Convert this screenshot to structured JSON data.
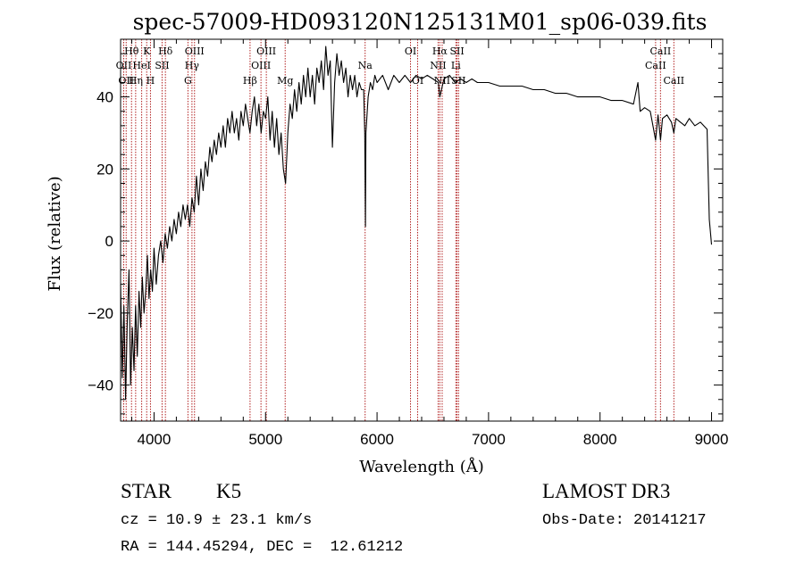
{
  "chart_data": {
    "type": "line",
    "title": "spec-57009-HD093120N125131M01_sp06-039.fits",
    "xlabel": "Wavelength (Å)",
    "ylabel": "Flux (relative)",
    "xlim": [
      3700,
      9100
    ],
    "ylim": [
      -50,
      56
    ],
    "xticks": [
      4000,
      5000,
      6000,
      7000,
      8000,
      9000
    ],
    "yticks": [
      -40,
      -20,
      0,
      20,
      40
    ],
    "grid": false,
    "series": [
      {
        "points": [
          [
            3700,
            -12
          ],
          [
            3715,
            -38
          ],
          [
            3730,
            -18
          ],
          [
            3745,
            -44
          ],
          [
            3760,
            -22
          ],
          [
            3775,
            -8
          ],
          [
            3790,
            -40
          ],
          [
            3805,
            -24
          ],
          [
            3820,
            -36
          ],
          [
            3835,
            -18
          ],
          [
            3850,
            -32
          ],
          [
            3865,
            -14
          ],
          [
            3880,
            -24
          ],
          [
            3895,
            -10
          ],
          [
            3910,
            -20
          ],
          [
            3925,
            -14
          ],
          [
            3940,
            -4
          ],
          [
            3955,
            -16
          ],
          [
            3970,
            -8
          ],
          [
            3985,
            -14
          ],
          [
            4000,
            -2
          ],
          [
            4020,
            -12
          ],
          [
            4040,
            -4
          ],
          [
            4060,
            0
          ],
          [
            4080,
            -6
          ],
          [
            4100,
            2
          ],
          [
            4120,
            -2
          ],
          [
            4140,
            4
          ],
          [
            4160,
            0
          ],
          [
            4180,
            6
          ],
          [
            4200,
            2
          ],
          [
            4220,
            8
          ],
          [
            4240,
            4
          ],
          [
            4260,
            10
          ],
          [
            4280,
            6
          ],
          [
            4300,
            10
          ],
          [
            4320,
            4
          ],
          [
            4340,
            12
          ],
          [
            4360,
            8
          ],
          [
            4380,
            18
          ],
          [
            4400,
            10
          ],
          [
            4420,
            20
          ],
          [
            4440,
            14
          ],
          [
            4460,
            22
          ],
          [
            4480,
            18
          ],
          [
            4500,
            26
          ],
          [
            4520,
            22
          ],
          [
            4540,
            28
          ],
          [
            4560,
            24
          ],
          [
            4580,
            30
          ],
          [
            4600,
            26
          ],
          [
            4620,
            32
          ],
          [
            4640,
            26
          ],
          [
            4660,
            34
          ],
          [
            4680,
            30
          ],
          [
            4700,
            36
          ],
          [
            4720,
            30
          ],
          [
            4740,
            34
          ],
          [
            4760,
            28
          ],
          [
            4780,
            36
          ],
          [
            4800,
            32
          ],
          [
            4820,
            38
          ],
          [
            4840,
            34
          ],
          [
            4860,
            30
          ],
          [
            4880,
            36
          ],
          [
            4900,
            40
          ],
          [
            4920,
            32
          ],
          [
            4940,
            38
          ],
          [
            4960,
            30
          ],
          [
            4980,
            36
          ],
          [
            5000,
            34
          ],
          [
            5020,
            40
          ],
          [
            5040,
            28
          ],
          [
            5060,
            36
          ],
          [
            5080,
            26
          ],
          [
            5100,
            34
          ],
          [
            5120,
            24
          ],
          [
            5140,
            30
          ],
          [
            5160,
            20
          ],
          [
            5180,
            16
          ],
          [
            5200,
            30
          ],
          [
            5220,
            38
          ],
          [
            5240,
            34
          ],
          [
            5260,
            42
          ],
          [
            5280,
            36
          ],
          [
            5300,
            44
          ],
          [
            5320,
            38
          ],
          [
            5340,
            46
          ],
          [
            5360,
            40
          ],
          [
            5380,
            48
          ],
          [
            5400,
            40
          ],
          [
            5420,
            46
          ],
          [
            5440,
            38
          ],
          [
            5460,
            48
          ],
          [
            5480,
            44
          ],
          [
            5500,
            50
          ],
          [
            5520,
            42
          ],
          [
            5540,
            54
          ],
          [
            5560,
            46
          ],
          [
            5580,
            50
          ],
          [
            5600,
            26
          ],
          [
            5620,
            44
          ],
          [
            5640,
            52
          ],
          [
            5660,
            46
          ],
          [
            5680,
            50
          ],
          [
            5700,
            44
          ],
          [
            5720,
            48
          ],
          [
            5740,
            40
          ],
          [
            5760,
            46
          ],
          [
            5780,
            42
          ],
          [
            5800,
            46
          ],
          [
            5820,
            40
          ],
          [
            5840,
            44
          ],
          [
            5860,
            42
          ],
          [
            5880,
            42
          ],
          [
            5890,
            30
          ],
          [
            5896,
            4
          ],
          [
            5900,
            30
          ],
          [
            5920,
            40
          ],
          [
            5940,
            44
          ],
          [
            5960,
            42
          ],
          [
            5980,
            46
          ],
          [
            6000,
            44
          ],
          [
            6050,
            46
          ],
          [
            6100,
            42
          ],
          [
            6150,
            46
          ],
          [
            6200,
            44
          ],
          [
            6250,
            46
          ],
          [
            6300,
            44
          ],
          [
            6350,
            46
          ],
          [
            6400,
            45
          ],
          [
            6450,
            46
          ],
          [
            6500,
            45
          ],
          [
            6550,
            44
          ],
          [
            6563,
            40
          ],
          [
            6600,
            45
          ],
          [
            6650,
            46
          ],
          [
            6700,
            44
          ],
          [
            6750,
            45
          ],
          [
            6800,
            44
          ],
          [
            6850,
            45
          ],
          [
            6900,
            44
          ],
          [
            6950,
            44
          ],
          [
            7000,
            44
          ],
          [
            7100,
            43
          ],
          [
            7200,
            43
          ],
          [
            7300,
            43
          ],
          [
            7400,
            42
          ],
          [
            7500,
            42
          ],
          [
            7600,
            41
          ],
          [
            7700,
            41
          ],
          [
            7800,
            40
          ],
          [
            7900,
            40
          ],
          [
            8000,
            40
          ],
          [
            8100,
            39
          ],
          [
            8200,
            39
          ],
          [
            8300,
            38
          ],
          [
            8340,
            44
          ],
          [
            8360,
            36
          ],
          [
            8400,
            37
          ],
          [
            8450,
            36
          ],
          [
            8498,
            28
          ],
          [
            8520,
            35
          ],
          [
            8542,
            28
          ],
          [
            8560,
            34
          ],
          [
            8600,
            35
          ],
          [
            8640,
            33
          ],
          [
            8662,
            30
          ],
          [
            8680,
            34
          ],
          [
            8720,
            33
          ],
          [
            8760,
            32
          ],
          [
            8800,
            34
          ],
          [
            8850,
            32
          ],
          [
            8900,
            33
          ],
          [
            8960,
            31
          ],
          [
            8980,
            6
          ],
          [
            9000,
            -1
          ]
        ]
      }
    ],
    "lines": [
      {
        "x": 3728,
        "label": "OII",
        "tier": 2
      },
      {
        "x": 3750,
        "label": "OII",
        "tier": 3
      },
      {
        "x": 3798,
        "label": "Hθ",
        "tier": 1
      },
      {
        "x": 3835,
        "label": "Hη",
        "tier": 3
      },
      {
        "x": 3889,
        "label": "HeI",
        "tier": 2
      },
      {
        "x": 3934,
        "label": "K",
        "tier": 1
      },
      {
        "x": 3968,
        "label": "H",
        "tier": 3
      },
      {
        "x": 4072,
        "label": "SII",
        "tier": 2
      },
      {
        "x": 4102,
        "label": "Hδ",
        "tier": 1
      },
      {
        "x": 4304,
        "label": "G",
        "tier": 3
      },
      {
        "x": 4340,
        "label": "Hγ",
        "tier": 2
      },
      {
        "x": 4363,
        "label": "OIII",
        "tier": 1
      },
      {
        "x": 4861,
        "label": "Hβ",
        "tier": 3
      },
      {
        "x": 4959,
        "label": "OIII",
        "tier": 2
      },
      {
        "x": 5007,
        "label": "OIII",
        "tier": 1
      },
      {
        "x": 5176,
        "label": "Mg",
        "tier": 3
      },
      {
        "x": 5893,
        "label": "Na",
        "tier": 2
      },
      {
        "x": 6300,
        "label": "OI",
        "tier": 1
      },
      {
        "x": 6364,
        "label": "OI",
        "tier": 3
      },
      {
        "x": 6548,
        "label": "NII",
        "tier": 2
      },
      {
        "x": 6563,
        "label": "Hα",
        "tier": 1
      },
      {
        "x": 6584,
        "label": "NII",
        "tier": 3
      },
      {
        "x": 6707,
        "label": "Li",
        "tier": 2
      },
      {
        "x": 6717,
        "label": "SII",
        "tier": 1
      },
      {
        "x": 6731,
        "label": "SII",
        "tier": 3
      },
      {
        "x": 8498,
        "label": "CaII",
        "tier": 2
      },
      {
        "x": 8542,
        "label": "CaII",
        "tier": 1
      },
      {
        "x": 8662,
        "label": "CaII",
        "tier": 3
      }
    ]
  },
  "info": {
    "object_class": "STAR",
    "subclass": "K5",
    "survey": "LAMOST DR3",
    "redshift": "cz = 10.9 ± 23.1 km/s",
    "obs_date": "Obs-Date: 20141217",
    "coords": "RA = 144.45294, DEC =  12.61212"
  },
  "colors": {
    "axes": "#000000",
    "spectrum": "#000000",
    "line_markers": "#b22222",
    "background": "#ffffff"
  }
}
